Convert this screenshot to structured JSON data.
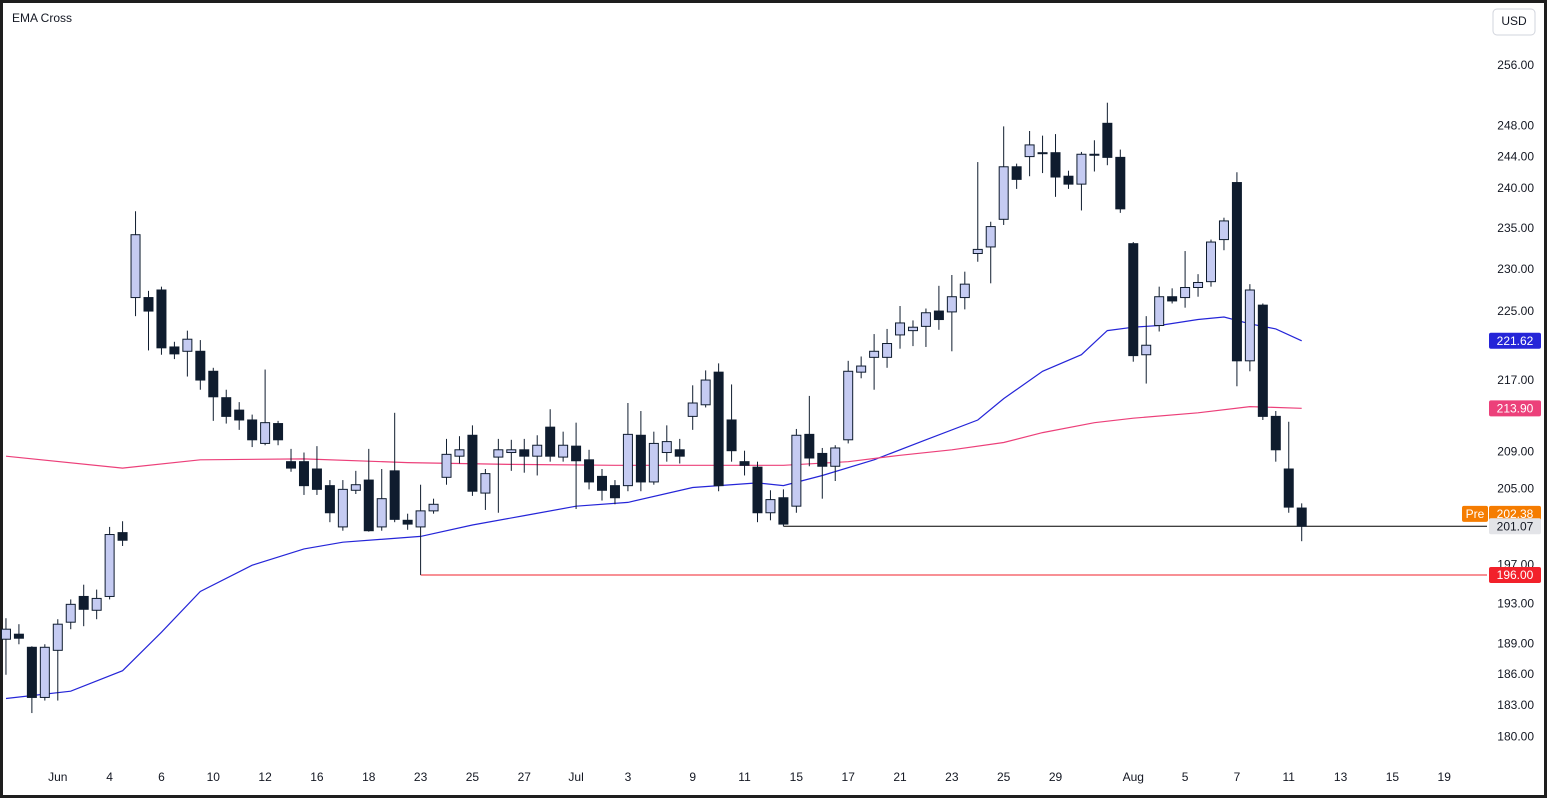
{
  "chart_data": {
    "type": "candlestick",
    "title": "EMA Cross",
    "currency": "USD",
    "log_scale": true,
    "xlim": [
      -0.46,
      114.3
    ],
    "ylim": [
      177.4,
      265
    ],
    "yticks": [
      {
        "value": 256,
        "label": "256.00"
      },
      {
        "value": 248,
        "label": "248.00"
      },
      {
        "value": 244,
        "label": "244.00"
      },
      {
        "value": 240,
        "label": "240.00"
      },
      {
        "value": 235,
        "label": "235.00"
      },
      {
        "value": 230,
        "label": "230.00"
      },
      {
        "value": 225,
        "label": "225.00"
      },
      {
        "value": 217,
        "label": "217.00"
      },
      {
        "value": 209,
        "label": "209.00"
      },
      {
        "value": 205,
        "label": "205.00"
      },
      {
        "value": 197,
        "label": "197.00"
      },
      {
        "value": 193,
        "label": "193.00"
      },
      {
        "value": 189,
        "label": "189.00"
      },
      {
        "value": 186,
        "label": "186.00"
      },
      {
        "value": 183,
        "label": "183.00"
      },
      {
        "value": 180,
        "label": "180.00"
      }
    ],
    "xticks": [
      {
        "value": 4,
        "label": "Jun"
      },
      {
        "value": 8,
        "label": "4"
      },
      {
        "value": 12,
        "label": "6"
      },
      {
        "value": 16,
        "label": "10"
      },
      {
        "value": 20,
        "label": "12"
      },
      {
        "value": 24,
        "label": "16"
      },
      {
        "value": 28,
        "label": "18"
      },
      {
        "value": 32,
        "label": "23"
      },
      {
        "value": 36,
        "label": "25"
      },
      {
        "value": 40,
        "label": "27"
      },
      {
        "value": 44,
        "label": "Jul"
      },
      {
        "value": 48,
        "label": "3"
      },
      {
        "value": 53,
        "label": "9"
      },
      {
        "value": 57,
        "label": "11"
      },
      {
        "value": 61,
        "label": "15"
      },
      {
        "value": 65,
        "label": "17"
      },
      {
        "value": 69,
        "label": "21"
      },
      {
        "value": 73,
        "label": "23"
      },
      {
        "value": 77,
        "label": "25"
      },
      {
        "value": 81,
        "label": "29"
      },
      {
        "value": 87,
        "label": "Aug"
      },
      {
        "value": 91,
        "label": "5"
      },
      {
        "value": 95,
        "label": "7"
      },
      {
        "value": 99,
        "label": "11"
      },
      {
        "value": 103,
        "label": "13"
      },
      {
        "value": 107,
        "label": "15"
      },
      {
        "value": 111,
        "label": "19"
      }
    ],
    "up_color": "#c5cbf2",
    "down_color": "#0f1c2e",
    "x": [
      0,
      1,
      2,
      3,
      4,
      5,
      6,
      7,
      8,
      9,
      10,
      11,
      12,
      13,
      14,
      15,
      16,
      17,
      18,
      19,
      20,
      21,
      22,
      23,
      24,
      25,
      26,
      27,
      28,
      29,
      30,
      31,
      32,
      33,
      34,
      35,
      36,
      37,
      38,
      39,
      40,
      41,
      42,
      43,
      44,
      45,
      46,
      47,
      48,
      49,
      50,
      51,
      52,
      53,
      54,
      55,
      56,
      57,
      58,
      59,
      60,
      61,
      62,
      63,
      64,
      65,
      66,
      67,
      68,
      69,
      70,
      71,
      72,
      73,
      74,
      75,
      76,
      77,
      78,
      79,
      80,
      81,
      82,
      83,
      84,
      85,
      86,
      87,
      88,
      89,
      90,
      91,
      92,
      93,
      94,
      95,
      96,
      97,
      98,
      99,
      100
    ],
    "open": [
      189.5,
      190,
      188.7,
      183.8,
      188.4,
      191.2,
      193.8,
      192.4,
      193.8,
      200.4,
      226.7,
      226.7,
      227.6,
      220.9,
      220.4,
      220.4,
      218.1,
      215.1,
      213.7,
      212.6,
      210,
      212.2,
      208,
      208,
      207.2,
      205.4,
      201,
      204.9,
      206,
      201,
      207,
      201.7,
      201,
      202.7,
      206.3,
      208.6,
      210.9,
      204.6,
      208.5,
      209,
      209.3,
      208.6,
      211.8,
      208.5,
      209.7,
      208.2,
      206.4,
      205.4,
      205.4,
      210.9,
      205.8,
      209,
      209.3,
      213,
      214.3,
      218,
      212.6,
      208,
      207.4,
      202.5,
      204.1,
      203.2,
      211,
      208.9,
      207.5,
      210.4,
      218,
      219.7,
      219.7,
      222.3,
      222.8,
      223.3,
      225.1,
      225,
      226.7,
      232,
      232.8,
      236.2,
      242.8,
      244.1,
      244.5,
      244.6,
      241.6,
      240.6,
      244.4,
      248.4,
      244,
      233.2,
      220,
      223.4,
      226.8,
      226.7,
      227.9,
      228.6,
      233.7,
      240.8,
      219.3,
      225.8,
      213,
      207.2,
      203
    ],
    "high": [
      191.6,
      191,
      188.8,
      189,
      191.5,
      193.5,
      195,
      194.5,
      201,
      201.6,
      237.2,
      227.5,
      228,
      221.5,
      222.8,
      221.7,
      218.5,
      216,
      214.6,
      213.2,
      218.3,
      212.5,
      209.4,
      209,
      209.7,
      206,
      206,
      207,
      209.4,
      207.2,
      213.4,
      202.4,
      205.5,
      204,
      210.5,
      210.8,
      212,
      207.2,
      210.5,
      210.4,
      210.5,
      210.9,
      213.8,
      211.3,
      212.3,
      209.3,
      207.2,
      206,
      214.5,
      213.6,
      211.3,
      212,
      210.5,
      216.5,
      218.2,
      219,
      216.6,
      209.2,
      208,
      204.9,
      205,
      211.6,
      215.3,
      209.5,
      209.8,
      219.3,
      219.8,
      222.4,
      223,
      225.7,
      224,
      225.4,
      228.1,
      229.4,
      229.8,
      243.4,
      235.9,
      248,
      243.2,
      247.4,
      246.8,
      247,
      242.3,
      244.7,
      246.2,
      251.1,
      245,
      233.4,
      224.5,
      228,
      227.8,
      232.3,
      229.5,
      233.7,
      236.4,
      242.1,
      228.3,
      226,
      213.6,
      212.4,
      203.5
    ],
    "low": [
      186,
      189,
      182.3,
      183.5,
      183.5,
      190.5,
      190.8,
      191.5,
      193.5,
      199,
      224.5,
      220.5,
      220,
      219.5,
      217.5,
      216,
      212.5,
      212.2,
      211.5,
      209.6,
      209.8,
      209.8,
      206.9,
      204.4,
      204.4,
      201.5,
      200.6,
      204.5,
      200.5,
      200.6,
      201.5,
      200.7,
      196,
      202.4,
      205.5,
      207.8,
      204.3,
      202.8,
      202.5,
      207,
      206.8,
      206.5,
      208,
      208,
      202.9,
      205,
      203.8,
      203.4,
      204.8,
      204.8,
      205.5,
      208,
      207.8,
      211.5,
      214,
      204.8,
      208,
      206.5,
      201.5,
      201.7,
      201.07,
      202.5,
      207.5,
      204,
      205.9,
      210,
      217.3,
      216,
      218.5,
      220.7,
      221,
      220.9,
      222.9,
      220.4,
      225.3,
      231,
      228.4,
      235.5,
      240,
      241.6,
      242,
      239,
      240,
      237.3,
      242.2,
      243,
      237,
      219.2,
      216.7,
      222.7,
      226,
      225.5,
      226.8,
      228,
      232.4,
      216.4,
      218.1,
      212.6,
      208,
      202.5,
      199.5
    ],
    "close": [
      190.5,
      189.6,
      183.8,
      188.7,
      191,
      193,
      192.5,
      193.6,
      200.2,
      199.6,
      234.3,
      225.1,
      220.8,
      220.1,
      221.8,
      217.1,
      215.2,
      213,
      212.6,
      210.4,
      212.3,
      210.4,
      207.3,
      205.4,
      205,
      202.5,
      205,
      205.5,
      200.6,
      204,
      201.8,
      201.3,
      202.7,
      203.4,
      208.8,
      209.3,
      204.8,
      206.7,
      209.3,
      209.3,
      208.6,
      209.8,
      208.6,
      209.8,
      208.1,
      205.8,
      204.9,
      204.1,
      211,
      205.8,
      210,
      210.2,
      208.6,
      214.5,
      217.1,
      205.4,
      209.2,
      207.6,
      202.5,
      203.9,
      201.3,
      210.9,
      208.4,
      207.5,
      209.5,
      218.1,
      218.7,
      220.4,
      221.3,
      223.7,
      223.2,
      224.9,
      224.1,
      226.8,
      228.3,
      232.5,
      235.3,
      242.8,
      241.2,
      245.6,
      244.6,
      241.5,
      240.6,
      244.4,
      244.3,
      244,
      237.5,
      219.9,
      221.1,
      226.8,
      226.3,
      227.9,
      228.5,
      233.4,
      236,
      219.3,
      227.6,
      213,
      209.3,
      203.1,
      201.07
    ],
    "series": [
      {
        "color": "#2525d8",
        "x": [
          0,
          5,
          9,
          12,
          15,
          19,
          23,
          26,
          32,
          36,
          40,
          44,
          48,
          53,
          58,
          60,
          63,
          67,
          71,
          75,
          77,
          80,
          83,
          85,
          87,
          89,
          92,
          94,
          96,
          98,
          100
        ],
        "values": [
          183.7,
          184.4,
          186.4,
          190.2,
          194.3,
          197,
          198.7,
          199.4,
          200,
          201.2,
          202.2,
          203.2,
          203.6,
          205.2,
          205.7,
          205.4,
          206.5,
          208.2,
          210.4,
          212.6,
          215,
          218.1,
          220,
          222.8,
          223.2,
          223.4,
          224.1,
          224.4,
          223.6,
          223,
          221.62
        ]
      },
      {
        "color": "#ec407a",
        "x": [
          0,
          9,
          15,
          23,
          31,
          39,
          47,
          55,
          60,
          65,
          69,
          73,
          77,
          80,
          84,
          87,
          92,
          96,
          100
        ],
        "values": [
          208.6,
          207.3,
          208.2,
          208.3,
          207.9,
          207.7,
          207.6,
          207.6,
          207.6,
          208,
          208.7,
          209.3,
          210.1,
          211.2,
          212.3,
          212.8,
          213.4,
          214.1,
          213.9
        ]
      }
    ],
    "levels": [
      {
        "value": 221.62,
        "label": "221.62",
        "color": "#2525d8"
      },
      {
        "value": 213.9,
        "label": "213.90",
        "color": "#ec407a"
      },
      {
        "value": 202.38,
        "label": "202.38",
        "prefix": "Pre",
        "color": "#f57c00"
      },
      {
        "value": 201.07,
        "label": "201.07",
        "color": "#e3e4e8",
        "line_color": "#000000",
        "line_from_x": 60
      },
      {
        "value": 196,
        "label": "196.00",
        "color": "#f2212b",
        "line_color": "#f2212b",
        "line_from_x": 32
      }
    ]
  }
}
